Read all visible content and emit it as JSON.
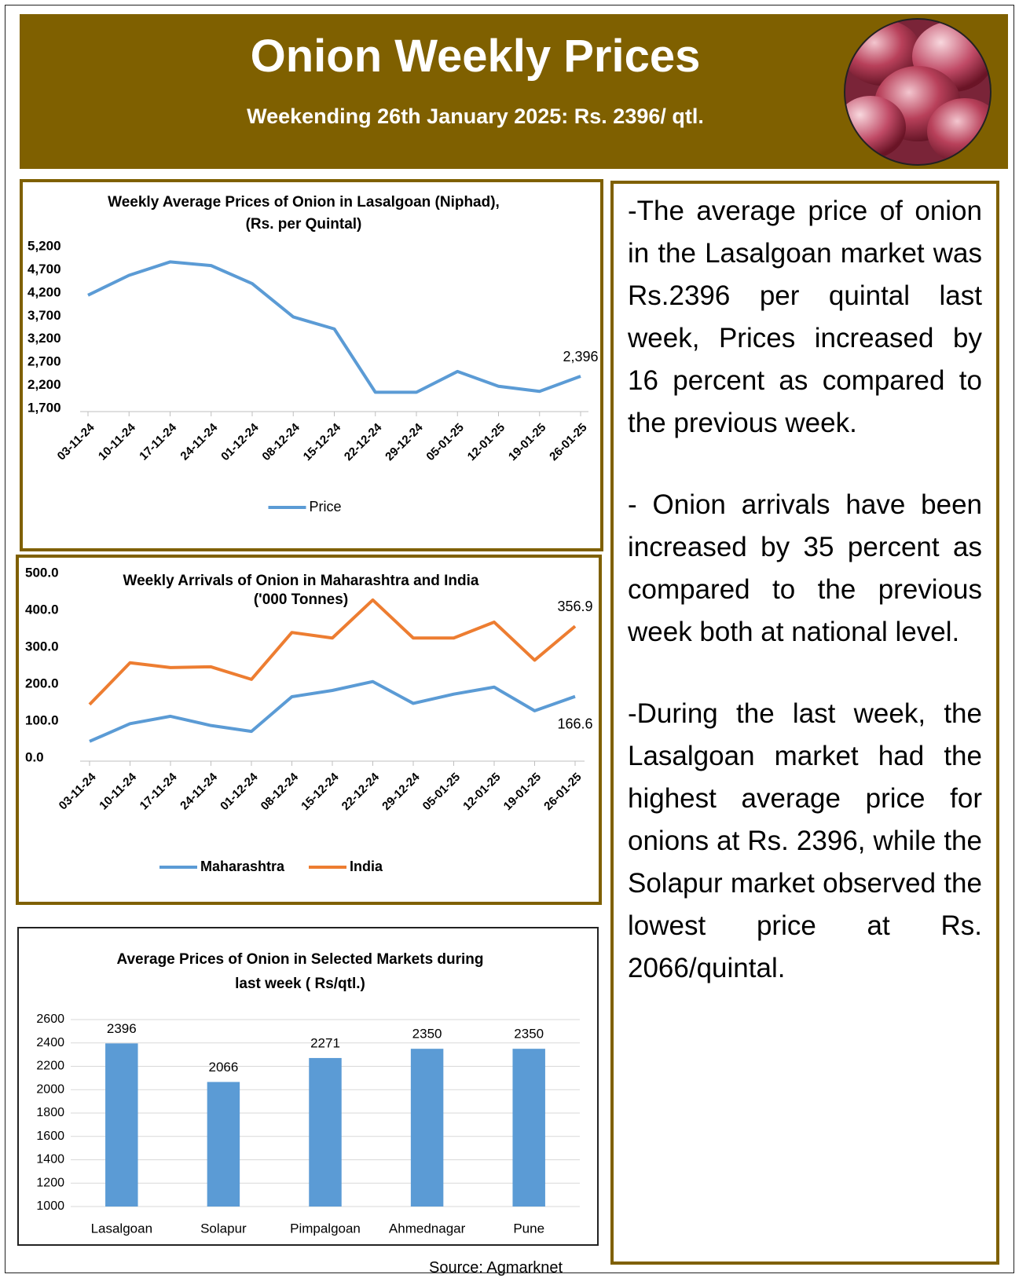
{
  "header": {
    "title": "Onion Weekly Prices",
    "subtitle": "Weekending  26th January 2025: Rs. 2396/ qtl."
  },
  "chart_data": [
    {
      "type": "line",
      "title": "Weekly Average Prices of Onion in Lasalgoan (Niphad),",
      "subtitle": "(Rs. per Quintal)",
      "categories": [
        "03-11-24",
        "10-11-24",
        "17-11-24",
        "24-11-24",
        "01-12-24",
        "08-12-24",
        "15-12-24",
        "22-12-24",
        "29-12-24",
        "05-01-25",
        "12-01-25",
        "19-01-25",
        "26-01-25"
      ],
      "series": [
        {
          "name": "Price",
          "color": "#5b9bd5",
          "values": [
            4150,
            4580,
            4870,
            4790,
            4400,
            3680,
            3420,
            2050,
            2050,
            2500,
            2180,
            2070,
            2396
          ],
          "value_labels": [
            null,
            null,
            null,
            null,
            null,
            null,
            null,
            null,
            null,
            null,
            null,
            null,
            "2,396"
          ]
        }
      ],
      "ylim": [
        1700,
        5200
      ],
      "yticks": [
        {
          "value": 1700,
          "label": "1,700"
        },
        {
          "value": 2200,
          "label": "2,200"
        },
        {
          "value": 2700,
          "label": "2,700"
        },
        {
          "value": 3200,
          "label": "3,200"
        },
        {
          "value": 3700,
          "label": "3,700"
        },
        {
          "value": 4200,
          "label": "4,200"
        },
        {
          "value": 4700,
          "label": "4,700"
        },
        {
          "value": 5200,
          "label": "5,200"
        }
      ],
      "legend": "bottom",
      "grid": false
    },
    {
      "type": "line",
      "title": "Weekly Arrivals of Onion in Maharashtra and India",
      "subtitle": "('000 Tonnes)",
      "categories": [
        "03-11-24",
        "10-11-24",
        "17-11-24",
        "24-11-24",
        "01-12-24",
        "08-12-24",
        "15-12-24",
        "22-12-24",
        "29-12-24",
        "05-01-25",
        "12-01-25",
        "19-01-25",
        "26-01-25"
      ],
      "series": [
        {
          "name": "Maharashtra",
          "color": "#5b9bd5",
          "values": [
            45,
            93,
            113,
            88,
            72,
            166,
            183,
            207,
            148,
            173,
            192,
            128,
            166.6
          ]
        },
        {
          "name": "India",
          "color": "#ed7d31",
          "values": [
            145,
            258,
            245,
            247,
            213,
            340,
            325,
            428,
            325,
            325,
            368,
            265,
            356.9
          ]
        }
      ],
      "ylim": [
        0,
        500
      ],
      "yticks": [
        {
          "value": 0,
          "label": "0.0"
        },
        {
          "value": 100,
          "label": "100.0"
        },
        {
          "value": 200,
          "label": "200.0"
        },
        {
          "value": 300,
          "label": "300.0"
        },
        {
          "value": 400,
          "label": "400.0"
        },
        {
          "value": 500,
          "label": "500.0"
        }
      ],
      "legend": "bottom",
      "grid": false
    },
    {
      "type": "bar",
      "title": "Average Prices of Onion in Selected Markets during",
      "subtitle": "last week ( Rs/qtl.)",
      "categories": [
        "Lasalgoan",
        "Solapur",
        "Pimpalgoan",
        "Ahmednagar",
        "Pune"
      ],
      "values": [
        2396,
        2066,
        2271,
        2350,
        2350
      ],
      "color": "#5b9bd5",
      "ylim": [
        1000,
        2600
      ],
      "yticks": [
        1000,
        1200,
        1400,
        1600,
        1800,
        2000,
        2200,
        2400,
        2600
      ],
      "grid": true
    }
  ],
  "text": {
    "paragraphs": [
      "-The average price of onion in the Lasalgoan market was Rs.2396 per quintal last week, Prices increased by 16 percent as compared to the previous week.",
      "- Onion arrivals have been increased by 35 percent as compared to the previous week both at national level.",
      "-During the last week, the Lasalgoan market had the highest average price for onions at Rs. 2396, while the Solapur market observed the lowest price at Rs. 2066/quintal."
    ]
  },
  "source": "Source: Agmarknet"
}
